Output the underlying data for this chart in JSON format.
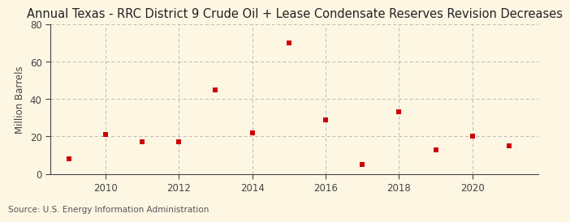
{
  "title": "Annual Texas - RRC District 9 Crude Oil + Lease Condensate Reserves Revision Decreases",
  "ylabel": "Million Barrels",
  "source": "Source: U.S. Energy Information Administration",
  "years": [
    2009,
    2010,
    2011,
    2012,
    2013,
    2014,
    2015,
    2016,
    2017,
    2018,
    2019,
    2020,
    2021
  ],
  "values": [
    8,
    21,
    17,
    17,
    45,
    22,
    70,
    29,
    5,
    33,
    13,
    20,
    15
  ],
  "marker_color": "#cc0000",
  "marker": "s",
  "marker_size": 4,
  "xlim": [
    2008.5,
    2021.8
  ],
  "ylim": [
    0,
    80
  ],
  "yticks": [
    0,
    20,
    40,
    60,
    80
  ],
  "xticks": [
    2010,
    2012,
    2014,
    2016,
    2018,
    2020
  ],
  "background_color": "#fdf6e3",
  "grid_color": "#aaaaaa",
  "title_fontsize": 10.5,
  "axis_fontsize": 8.5,
  "source_fontsize": 7.5,
  "tick_color": "#444444",
  "spine_color": "#444444"
}
